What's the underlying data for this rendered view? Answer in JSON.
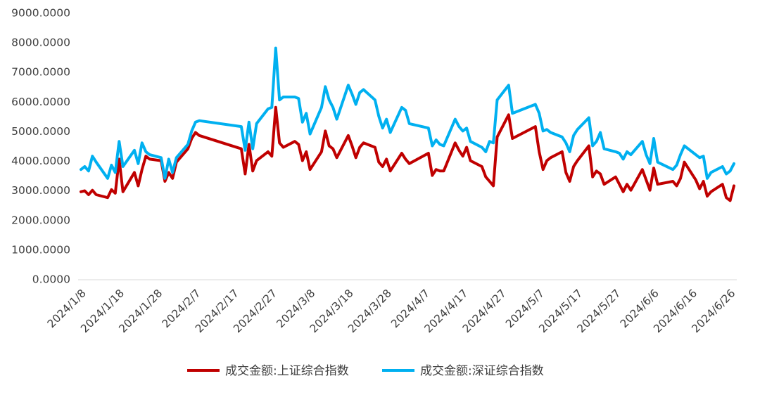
{
  "chart_data": {
    "type": "line",
    "xlabel": "",
    "ylabel": "",
    "ylim": [
      0,
      9000
    ],
    "yticks": [
      "0.0000",
      "1000.0000",
      "2000.0000",
      "3000.0000",
      "4000.0000",
      "5000.0000",
      "6000.0000",
      "7000.0000",
      "8000.0000",
      "9000.0000"
    ],
    "xticks": [
      "2024/1/8",
      "2024/1/18",
      "2024/1/28",
      "2024/2/7",
      "2024/2/17",
      "2024/2/27",
      "2024/3/8",
      "2024/3/18",
      "2024/3/28",
      "2024/4/7",
      "2024/4/17",
      "2024/4/27",
      "2024/5/7",
      "2024/5/17",
      "2024/5/27",
      "2024/6/6",
      "2024/6/16",
      "2024/6/26"
    ],
    "legend_position": "bottom",
    "grid": false,
    "series": [
      {
        "name": "成交金额:上证综合指数",
        "color": "#C00000",
        "points": [
          [
            "2024/1/8",
            2950
          ],
          [
            "2024/1/9",
            2980
          ],
          [
            "2024/1/10",
            2850
          ],
          [
            "2024/1/11",
            3000
          ],
          [
            "2024/1/12",
            2850
          ],
          [
            "2024/1/15",
            2750
          ],
          [
            "2024/1/16",
            3020
          ],
          [
            "2024/1/17",
            2900
          ],
          [
            "2024/1/18",
            4050
          ],
          [
            "2024/1/19",
            2950
          ],
          [
            "2024/1/22",
            3600
          ],
          [
            "2024/1/23",
            3150
          ],
          [
            "2024/1/24",
            3700
          ],
          [
            "2024/1/25",
            4150
          ],
          [
            "2024/1/26",
            4050
          ],
          [
            "2024/1/29",
            4000
          ],
          [
            "2024/1/30",
            3300
          ],
          [
            "2024/1/31",
            3600
          ],
          [
            "2024/2/1",
            3400
          ],
          [
            "2024/2/2",
            3950
          ],
          [
            "2024/2/5",
            4400
          ],
          [
            "2024/2/6",
            4750
          ],
          [
            "2024/2/7",
            4950
          ],
          [
            "2024/2/8",
            4850
          ],
          [
            "2024/2/19",
            4400
          ],
          [
            "2024/2/20",
            3550
          ],
          [
            "2024/2/21",
            4550
          ],
          [
            "2024/2/22",
            3650
          ],
          [
            "2024/2/23",
            4000
          ],
          [
            "2024/2/26",
            4300
          ],
          [
            "2024/2/27",
            4150
          ],
          [
            "2024/2/28",
            5800
          ],
          [
            "2024/2/29",
            4600
          ],
          [
            "2024/3/1",
            4450
          ],
          [
            "2024/3/4",
            4650
          ],
          [
            "2024/3/5",
            4550
          ],
          [
            "2024/3/6",
            4000
          ],
          [
            "2024/3/7",
            4300
          ],
          [
            "2024/3/8",
            3700
          ],
          [
            "2024/3/11",
            4300
          ],
          [
            "2024/3/12",
            5000
          ],
          [
            "2024/3/13",
            4500
          ],
          [
            "2024/3/14",
            4400
          ],
          [
            "2024/3/15",
            4100
          ],
          [
            "2024/3/18",
            4850
          ],
          [
            "2024/3/19",
            4500
          ],
          [
            "2024/3/20",
            4100
          ],
          [
            "2024/3/21",
            4450
          ],
          [
            "2024/3/22",
            4600
          ],
          [
            "2024/3/25",
            4450
          ],
          [
            "2024/3/26",
            3950
          ],
          [
            "2024/3/27",
            3800
          ],
          [
            "2024/3/28",
            4050
          ],
          [
            "2024/3/29",
            3650
          ],
          [
            "2024/4/1",
            4250
          ],
          [
            "2024/4/2",
            4050
          ],
          [
            "2024/4/3",
            3900
          ],
          [
            "2024/4/8",
            4250
          ],
          [
            "2024/4/9",
            3500
          ],
          [
            "2024/4/10",
            3700
          ],
          [
            "2024/4/11",
            3650
          ],
          [
            "2024/4/12",
            3650
          ],
          [
            "2024/4/15",
            4600
          ],
          [
            "2024/4/16",
            4350
          ],
          [
            "2024/4/17",
            4150
          ],
          [
            "2024/4/18",
            4450
          ],
          [
            "2024/4/19",
            4000
          ],
          [
            "2024/4/22",
            3800
          ],
          [
            "2024/4/23",
            3450
          ],
          [
            "2024/4/24",
            3300
          ],
          [
            "2024/4/25",
            3150
          ],
          [
            "2024/4/26",
            4800
          ],
          [
            "2024/4/29",
            5550
          ],
          [
            "2024/4/30",
            4750
          ],
          [
            "2024/5/6",
            5150
          ],
          [
            "2024/5/7",
            4300
          ],
          [
            "2024/5/8",
            3700
          ],
          [
            "2024/5/9",
            4000
          ],
          [
            "2024/5/10",
            4100
          ],
          [
            "2024/5/13",
            4300
          ],
          [
            "2024/5/14",
            3600
          ],
          [
            "2024/5/15",
            3300
          ],
          [
            "2024/5/16",
            3800
          ],
          [
            "2024/5/17",
            4000
          ],
          [
            "2024/5/20",
            4500
          ],
          [
            "2024/5/21",
            3450
          ],
          [
            "2024/5/22",
            3650
          ],
          [
            "2024/5/23",
            3550
          ],
          [
            "2024/5/24",
            3200
          ],
          [
            "2024/5/27",
            3450
          ],
          [
            "2024/5/28",
            3200
          ],
          [
            "2024/5/29",
            2950
          ],
          [
            "2024/5/30",
            3200
          ],
          [
            "2024/5/31",
            3000
          ],
          [
            "2024/6/3",
            3700
          ],
          [
            "2024/6/4",
            3350
          ],
          [
            "2024/6/5",
            3000
          ],
          [
            "2024/6/6",
            3750
          ],
          [
            "2024/6/7",
            3200
          ],
          [
            "2024/6/11",
            3300
          ],
          [
            "2024/6/12",
            3150
          ],
          [
            "2024/6/13",
            3400
          ],
          [
            "2024/6/14",
            3950
          ],
          [
            "2024/6/17",
            3350
          ],
          [
            "2024/6/18",
            3050
          ],
          [
            "2024/6/19",
            3300
          ],
          [
            "2024/6/20",
            2800
          ],
          [
            "2024/6/21",
            2950
          ],
          [
            "2024/6/24",
            3200
          ],
          [
            "2024/6/25",
            2750
          ],
          [
            "2024/6/26",
            2650
          ],
          [
            "2024/6/27",
            3150
          ]
        ]
      },
      {
        "name": "成交金额:深证综合指数",
        "color": "#00B0F0",
        "points": [
          [
            "2024/1/8",
            3700
          ],
          [
            "2024/1/9",
            3800
          ],
          [
            "2024/1/10",
            3650
          ],
          [
            "2024/1/11",
            4150
          ],
          [
            "2024/1/12",
            3950
          ],
          [
            "2024/1/15",
            3400
          ],
          [
            "2024/1/16",
            3850
          ],
          [
            "2024/1/17",
            3600
          ],
          [
            "2024/1/18",
            4650
          ],
          [
            "2024/1/19",
            3800
          ],
          [
            "2024/1/22",
            4350
          ],
          [
            "2024/1/23",
            3900
          ],
          [
            "2024/1/24",
            4600
          ],
          [
            "2024/1/25",
            4300
          ],
          [
            "2024/1/26",
            4200
          ],
          [
            "2024/1/29",
            4100
          ],
          [
            "2024/1/30",
            3400
          ],
          [
            "2024/1/31",
            4050
          ],
          [
            "2024/2/1",
            3600
          ],
          [
            "2024/2/2",
            4100
          ],
          [
            "2024/2/5",
            4550
          ],
          [
            "2024/2/6",
            5000
          ],
          [
            "2024/2/7",
            5300
          ],
          [
            "2024/2/8",
            5350
          ],
          [
            "2024/2/19",
            5150
          ],
          [
            "2024/2/20",
            4350
          ],
          [
            "2024/2/21",
            5300
          ],
          [
            "2024/2/22",
            4400
          ],
          [
            "2024/2/23",
            5250
          ],
          [
            "2024/2/26",
            5750
          ],
          [
            "2024/2/27",
            5800
          ],
          [
            "2024/2/28",
            7800
          ],
          [
            "2024/2/29",
            6050
          ],
          [
            "2024/3/1",
            6150
          ],
          [
            "2024/3/4",
            6150
          ],
          [
            "2024/3/5",
            6100
          ],
          [
            "2024/3/6",
            5300
          ],
          [
            "2024/3/7",
            5600
          ],
          [
            "2024/3/8",
            4900
          ],
          [
            "2024/3/11",
            5800
          ],
          [
            "2024/3/12",
            6500
          ],
          [
            "2024/3/13",
            6050
          ],
          [
            "2024/3/14",
            5800
          ],
          [
            "2024/3/15",
            5400
          ],
          [
            "2024/3/18",
            6550
          ],
          [
            "2024/3/19",
            6250
          ],
          [
            "2024/3/20",
            5900
          ],
          [
            "2024/3/21",
            6300
          ],
          [
            "2024/3/22",
            6400
          ],
          [
            "2024/3/25",
            6050
          ],
          [
            "2024/3/26",
            5500
          ],
          [
            "2024/3/27",
            5100
          ],
          [
            "2024/3/28",
            5400
          ],
          [
            "2024/3/29",
            4950
          ],
          [
            "2024/4/1",
            5800
          ],
          [
            "2024/4/2",
            5700
          ],
          [
            "2024/4/3",
            5250
          ],
          [
            "2024/4/8",
            5100
          ],
          [
            "2024/4/9",
            4500
          ],
          [
            "2024/4/10",
            4700
          ],
          [
            "2024/4/11",
            4550
          ],
          [
            "2024/4/12",
            4500
          ],
          [
            "2024/4/15",
            5400
          ],
          [
            "2024/4/16",
            5150
          ],
          [
            "2024/4/17",
            5000
          ],
          [
            "2024/4/18",
            5100
          ],
          [
            "2024/4/19",
            4650
          ],
          [
            "2024/4/22",
            4450
          ],
          [
            "2024/4/23",
            4300
          ],
          [
            "2024/4/24",
            4650
          ],
          [
            "2024/4/25",
            4600
          ],
          [
            "2024/4/26",
            6050
          ],
          [
            "2024/4/29",
            6550
          ],
          [
            "2024/4/30",
            5600
          ],
          [
            "2024/5/6",
            5900
          ],
          [
            "2024/5/7",
            5600
          ],
          [
            "2024/5/8",
            5000
          ],
          [
            "2024/5/9",
            5050
          ],
          [
            "2024/5/10",
            4950
          ],
          [
            "2024/5/13",
            4800
          ],
          [
            "2024/5/14",
            4600
          ],
          [
            "2024/5/15",
            4300
          ],
          [
            "2024/5/16",
            4850
          ],
          [
            "2024/5/17",
            5050
          ],
          [
            "2024/5/20",
            5450
          ],
          [
            "2024/5/21",
            4500
          ],
          [
            "2024/5/22",
            4650
          ],
          [
            "2024/5/23",
            4950
          ],
          [
            "2024/5/24",
            4400
          ],
          [
            "2024/5/27",
            4300
          ],
          [
            "2024/5/28",
            4250
          ],
          [
            "2024/5/29",
            4050
          ],
          [
            "2024/5/30",
            4300
          ],
          [
            "2024/5/31",
            4200
          ],
          [
            "2024/6/3",
            4650
          ],
          [
            "2024/6/4",
            4200
          ],
          [
            "2024/6/5",
            3900
          ],
          [
            "2024/6/6",
            4750
          ],
          [
            "2024/6/7",
            3950
          ],
          [
            "2024/6/11",
            3700
          ],
          [
            "2024/6/12",
            3850
          ],
          [
            "2024/6/13",
            4200
          ],
          [
            "2024/6/14",
            4500
          ],
          [
            "2024/6/17",
            4200
          ],
          [
            "2024/6/18",
            4100
          ],
          [
            "2024/6/19",
            4150
          ],
          [
            "2024/6/20",
            3400
          ],
          [
            "2024/6/21",
            3600
          ],
          [
            "2024/6/24",
            3800
          ],
          [
            "2024/6/25",
            3550
          ],
          [
            "2024/6/26",
            3650
          ],
          [
            "2024/6/27",
            3900
          ]
        ]
      }
    ]
  }
}
